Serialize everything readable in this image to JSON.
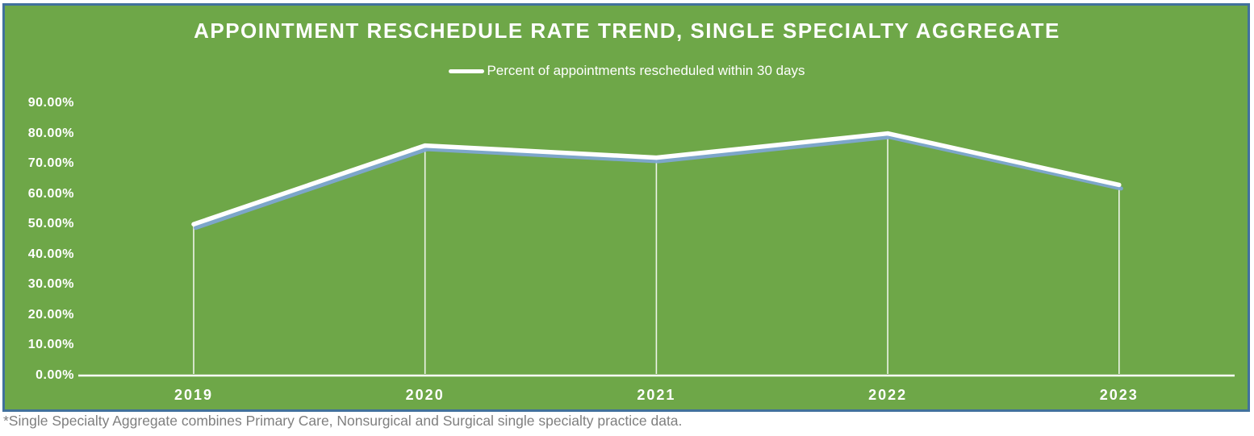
{
  "chart_data": {
    "type": "line",
    "title": "APPOINTMENT RESCHEDULE RATE TREND, SINGLE SPECIALTY AGGREGATE",
    "legend": {
      "position": "top",
      "label": "Percent of appointments rescheduled within 30 days"
    },
    "categories": [
      "2019",
      "2020",
      "2021",
      "2022",
      "2023"
    ],
    "series": [
      {
        "name": "Percent of appointments rescheduled within 30 days",
        "values": [
          50,
          76,
          72,
          80,
          63
        ],
        "unit": "%"
      }
    ],
    "ylim": [
      0,
      90
    ],
    "y_tick_step": 10,
    "y_tick_labels": [
      "90.00%",
      "80.00%",
      "70.00%",
      "60.00%",
      "50.00%",
      "40.00%",
      "30.00%",
      "20.00%",
      "10.00%",
      "0.00%"
    ],
    "grid": false,
    "droplines": true,
    "colors": {
      "chart_background": "#6ea748",
      "chart_border": "#41719c",
      "series_line": "#ffffff",
      "series_line_shadow": "#7da5d2",
      "axis_text": "#ffffff",
      "footnote_text": "#7f7f7f"
    },
    "footnote": "*Single Specialty Aggregate combines Primary Care, Nonsurgical and Surgical single specialty practice data."
  }
}
